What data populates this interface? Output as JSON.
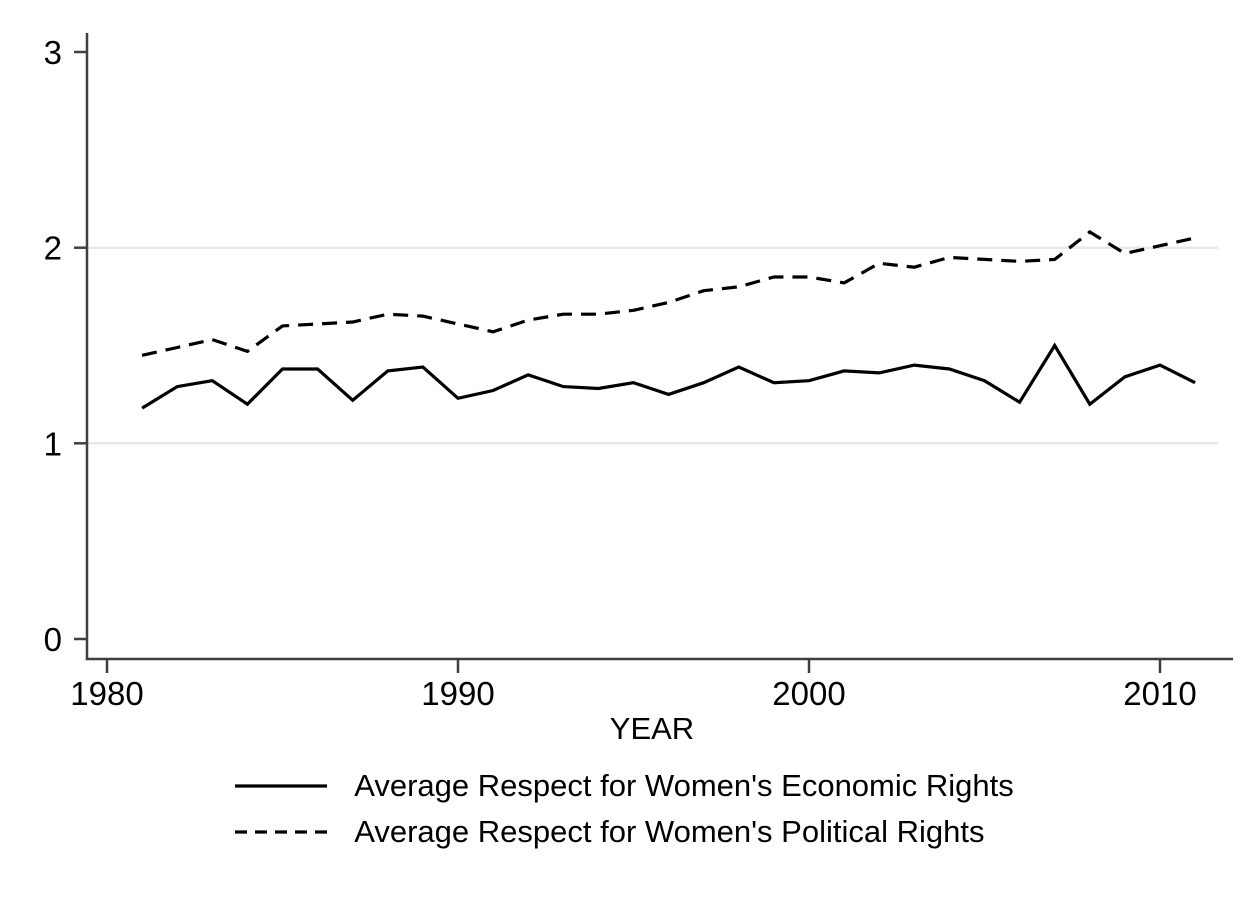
{
  "chart_data": {
    "type": "line",
    "title": "",
    "xlabel": "YEAR",
    "ylabel": "",
    "x_range": [
      1980,
      2011
    ],
    "ylim": [
      0,
      3
    ],
    "x_tick_values": [
      1980,
      1990,
      2000,
      2010
    ],
    "x_tick_labels": [
      "1980",
      "1990",
      "2000",
      "2010"
    ],
    "y_tick_values": [
      0,
      1,
      2,
      3
    ],
    "y_tick_labels": [
      "0",
      "1",
      "2",
      "3"
    ],
    "gridlines_at_y": [
      1,
      2
    ],
    "grid": "horizontal-light",
    "legend_position": "bottom",
    "years": [
      1981,
      1982,
      1983,
      1984,
      1985,
      1986,
      1987,
      1988,
      1989,
      1990,
      1991,
      1992,
      1993,
      1994,
      1995,
      1996,
      1997,
      1998,
      1999,
      2000,
      2001,
      2002,
      2003,
      2004,
      2005,
      2006,
      2007,
      2008,
      2009,
      2010,
      2011
    ],
    "series": [
      {
        "name": "Average Respect for Women's Economic Rights",
        "style": "solid",
        "color": "#000000",
        "values": [
          1.18,
          1.29,
          1.32,
          1.2,
          1.38,
          1.38,
          1.22,
          1.37,
          1.39,
          1.23,
          1.27,
          1.35,
          1.29,
          1.28,
          1.31,
          1.25,
          1.31,
          1.39,
          1.31,
          1.32,
          1.37,
          1.36,
          1.4,
          1.38,
          1.32,
          1.21,
          1.5,
          1.2,
          1.34,
          1.4,
          1.31
        ]
      },
      {
        "name": "Average Respect for Women's Political Rights",
        "style": "dashed",
        "color": "#000000",
        "values": [
          1.45,
          1.49,
          1.53,
          1.47,
          1.6,
          1.61,
          1.62,
          1.66,
          1.65,
          1.61,
          1.57,
          1.63,
          1.66,
          1.66,
          1.68,
          1.72,
          1.78,
          1.8,
          1.85,
          1.85,
          1.82,
          1.92,
          1.9,
          1.95,
          1.94,
          1.93,
          1.94,
          2.08,
          1.97,
          2.01,
          2.05
        ]
      }
    ],
    "colors": {
      "background": "#ffffff",
      "axis": "#3f3f3f",
      "gridline": "#e8e8e8",
      "line": "#000000",
      "text": "#000000"
    }
  }
}
